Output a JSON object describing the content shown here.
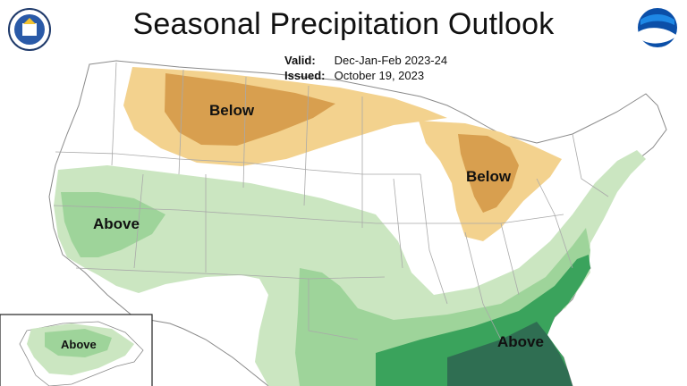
{
  "header": {
    "title": "Seasonal Precipitation Outlook",
    "valid_label": "Valid:",
    "valid_value": "Dec-Jan-Feb 2023-24",
    "issued_label": "Issued:",
    "issued_value": "October 19, 2023"
  },
  "logos": {
    "left": "department-of-commerce-seal",
    "right": "noaa-logo"
  },
  "map": {
    "colors": {
      "below_light": "#f3d28e",
      "below_medium": "#d89f4f",
      "above_light": "#cbe6c1",
      "above_medium": "#9ed49a",
      "above_strong": "#3aa35c",
      "above_darkest": "#2f6e52",
      "background": "#ffffff",
      "state_lines": "#a9a9a9"
    },
    "labels": [
      {
        "id": "below-northern-plains",
        "text": "Below"
      },
      {
        "id": "below-great-lakes",
        "text": "Below"
      },
      {
        "id": "above-california",
        "text": "Above"
      },
      {
        "id": "above-southeast",
        "text": "Above"
      },
      {
        "id": "above-alaska",
        "text": "Above"
      }
    ]
  }
}
